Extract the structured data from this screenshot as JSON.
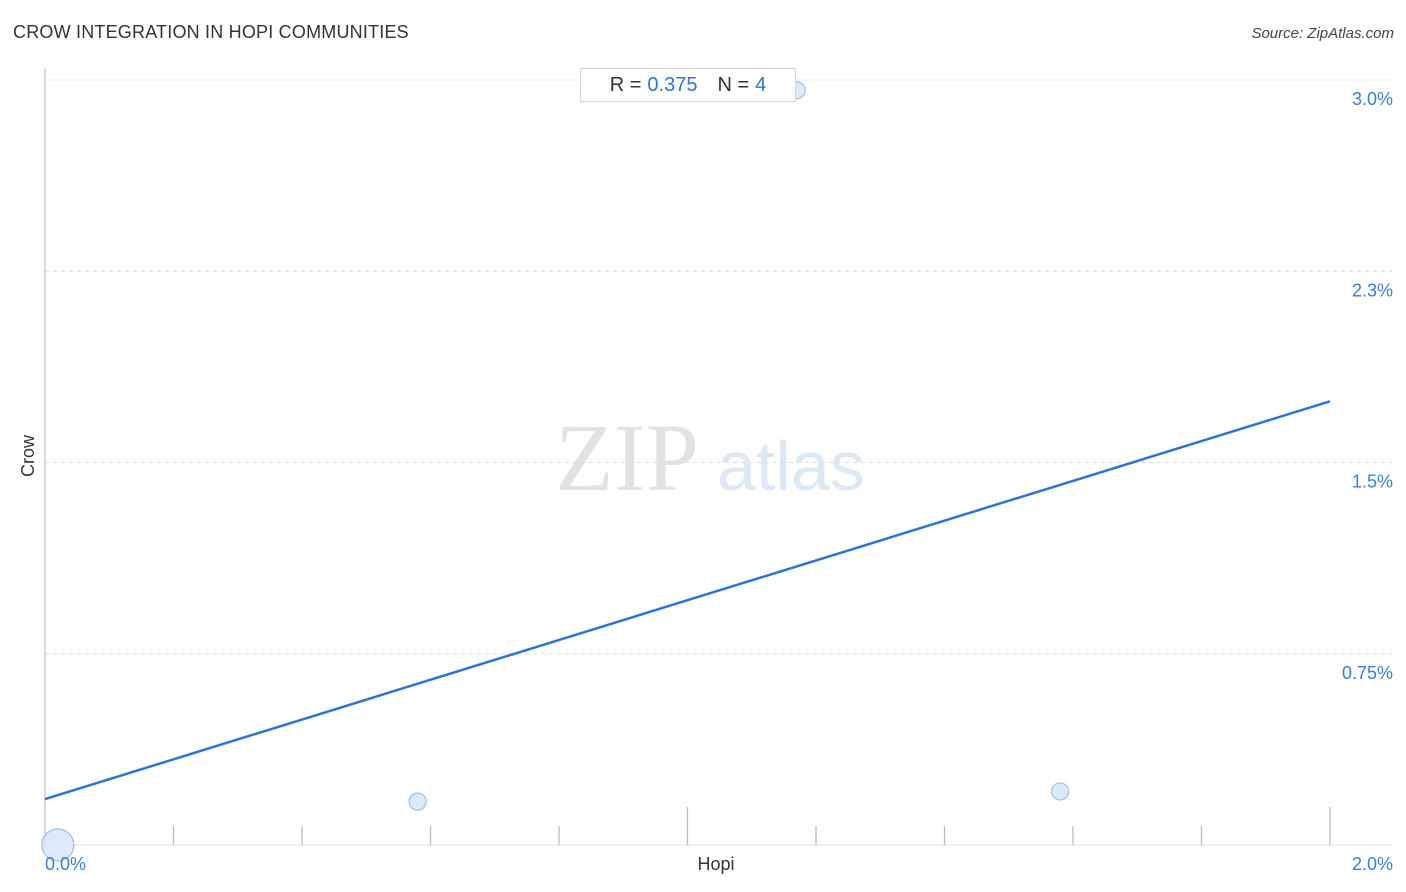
{
  "header": {
    "title": "CROW INTEGRATION IN HOPI COMMUNITIES",
    "source": "Source: ZipAtlas.com"
  },
  "stats": {
    "r_label": "R =",
    "r_value": "0.375",
    "n_label": "N =",
    "n_value": "4"
  },
  "watermark": {
    "zip": "ZIP",
    "atlas": "atlas"
  },
  "colors": {
    "accent": "#2f74d0",
    "point_fill": "#d6e6fa",
    "point_stroke": "#9dbfe8",
    "grid": "#dddddd"
  },
  "chart_data": {
    "type": "scatter",
    "xlabel": "Hopi",
    "ylabel": "Crow",
    "xlim": [
      0,
      2.0
    ],
    "ylim": [
      0,
      3.0
    ],
    "x_tick_labels": [
      "0.0%",
      "2.0%"
    ],
    "y_ticks": [
      {
        "value": 0.75,
        "label": "0.75%"
      },
      {
        "value": 1.5,
        "label": "1.5%"
      },
      {
        "value": 2.25,
        "label": "2.3%"
      },
      {
        "value": 3.0,
        "label": "3.0%"
      }
    ],
    "grid": true,
    "points": [
      {
        "x": 0.02,
        "y": 0.0,
        "size": "large"
      },
      {
        "x": 0.58,
        "y": 0.17,
        "size": "small"
      },
      {
        "x": 1.17,
        "y": 2.96,
        "size": "small"
      },
      {
        "x": 1.58,
        "y": 0.21,
        "size": "small"
      }
    ],
    "trendline": {
      "x": [
        0,
        2.0
      ],
      "y": [
        0.18,
        1.74
      ]
    }
  }
}
